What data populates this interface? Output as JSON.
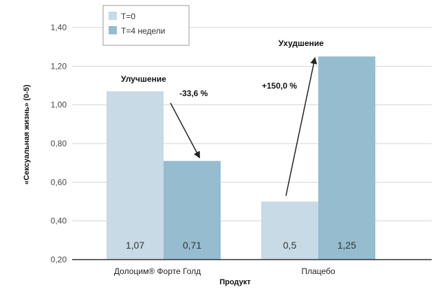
{
  "chart_data": {
    "type": "bar",
    "categories": [
      "Долоцим® Форте Голд",
      "Плацебо"
    ],
    "series": [
      {
        "name": "T=0",
        "values": [
          1.07,
          0.5
        ],
        "labels": [
          "1,07",
          "0,5"
        ],
        "color": "#c7dae5"
      },
      {
        "name": "T=4 недели",
        "values": [
          0.71,
          1.25
        ],
        "labels": [
          "0,71",
          "1,25"
        ],
        "color": "#95bccf"
      }
    ],
    "xlabel": "Продукт",
    "ylabel": "«Сексуальная жизнь» (0-5)",
    "ylim": [
      0.2,
      1.4
    ],
    "yticks": [
      0.2,
      0.4,
      0.6,
      0.8,
      1.0,
      1.2,
      1.4
    ],
    "ytick_labels": [
      "0,20",
      "0,40",
      "0,60",
      "0,80",
      "1,00",
      "1,20",
      "1,40"
    ],
    "grid": true,
    "legend_position": "top-left",
    "annotations": {
      "improvement_title": "Улучшение",
      "improvement_value": "-33,6 %",
      "worsening_title": "Ухудшение",
      "worsening_value": "+150,0 %"
    }
  }
}
